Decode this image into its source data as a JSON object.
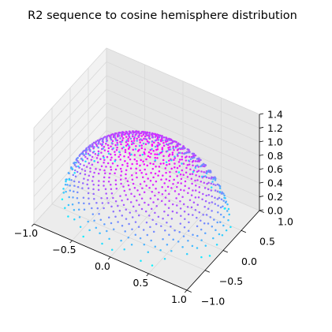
{
  "chart_data": {
    "type": "scatter",
    "projection": "3d",
    "title": "R2 sequence to cosine hemisphere distribution",
    "xlabel": "",
    "ylabel": "",
    "zlabel": "",
    "xlim": [
      -1.0,
      1.0
    ],
    "ylim": [
      -1.0,
      1.0
    ],
    "zlim": [
      0.0,
      1.4
    ],
    "grid": true,
    "legend": "none",
    "colormap": "cool",
    "color_by": "z",
    "x_ticks": [
      "−1.0",
      "−0.5",
      "0.0",
      "0.5",
      "1.0"
    ],
    "y_ticks": [
      "−1.0",
      "−0.5",
      "0.0",
      "0.5",
      "1.0"
    ],
    "z_ticks": [
      "0.0",
      "0.2",
      "0.4",
      "0.6",
      "0.8",
      "1.0",
      "1.2",
      "1.4"
    ],
    "sampling": {
      "sequence": "R2",
      "count": 1000,
      "mapping": "cosine-weighted hemisphere",
      "radius": 1.0
    }
  }
}
